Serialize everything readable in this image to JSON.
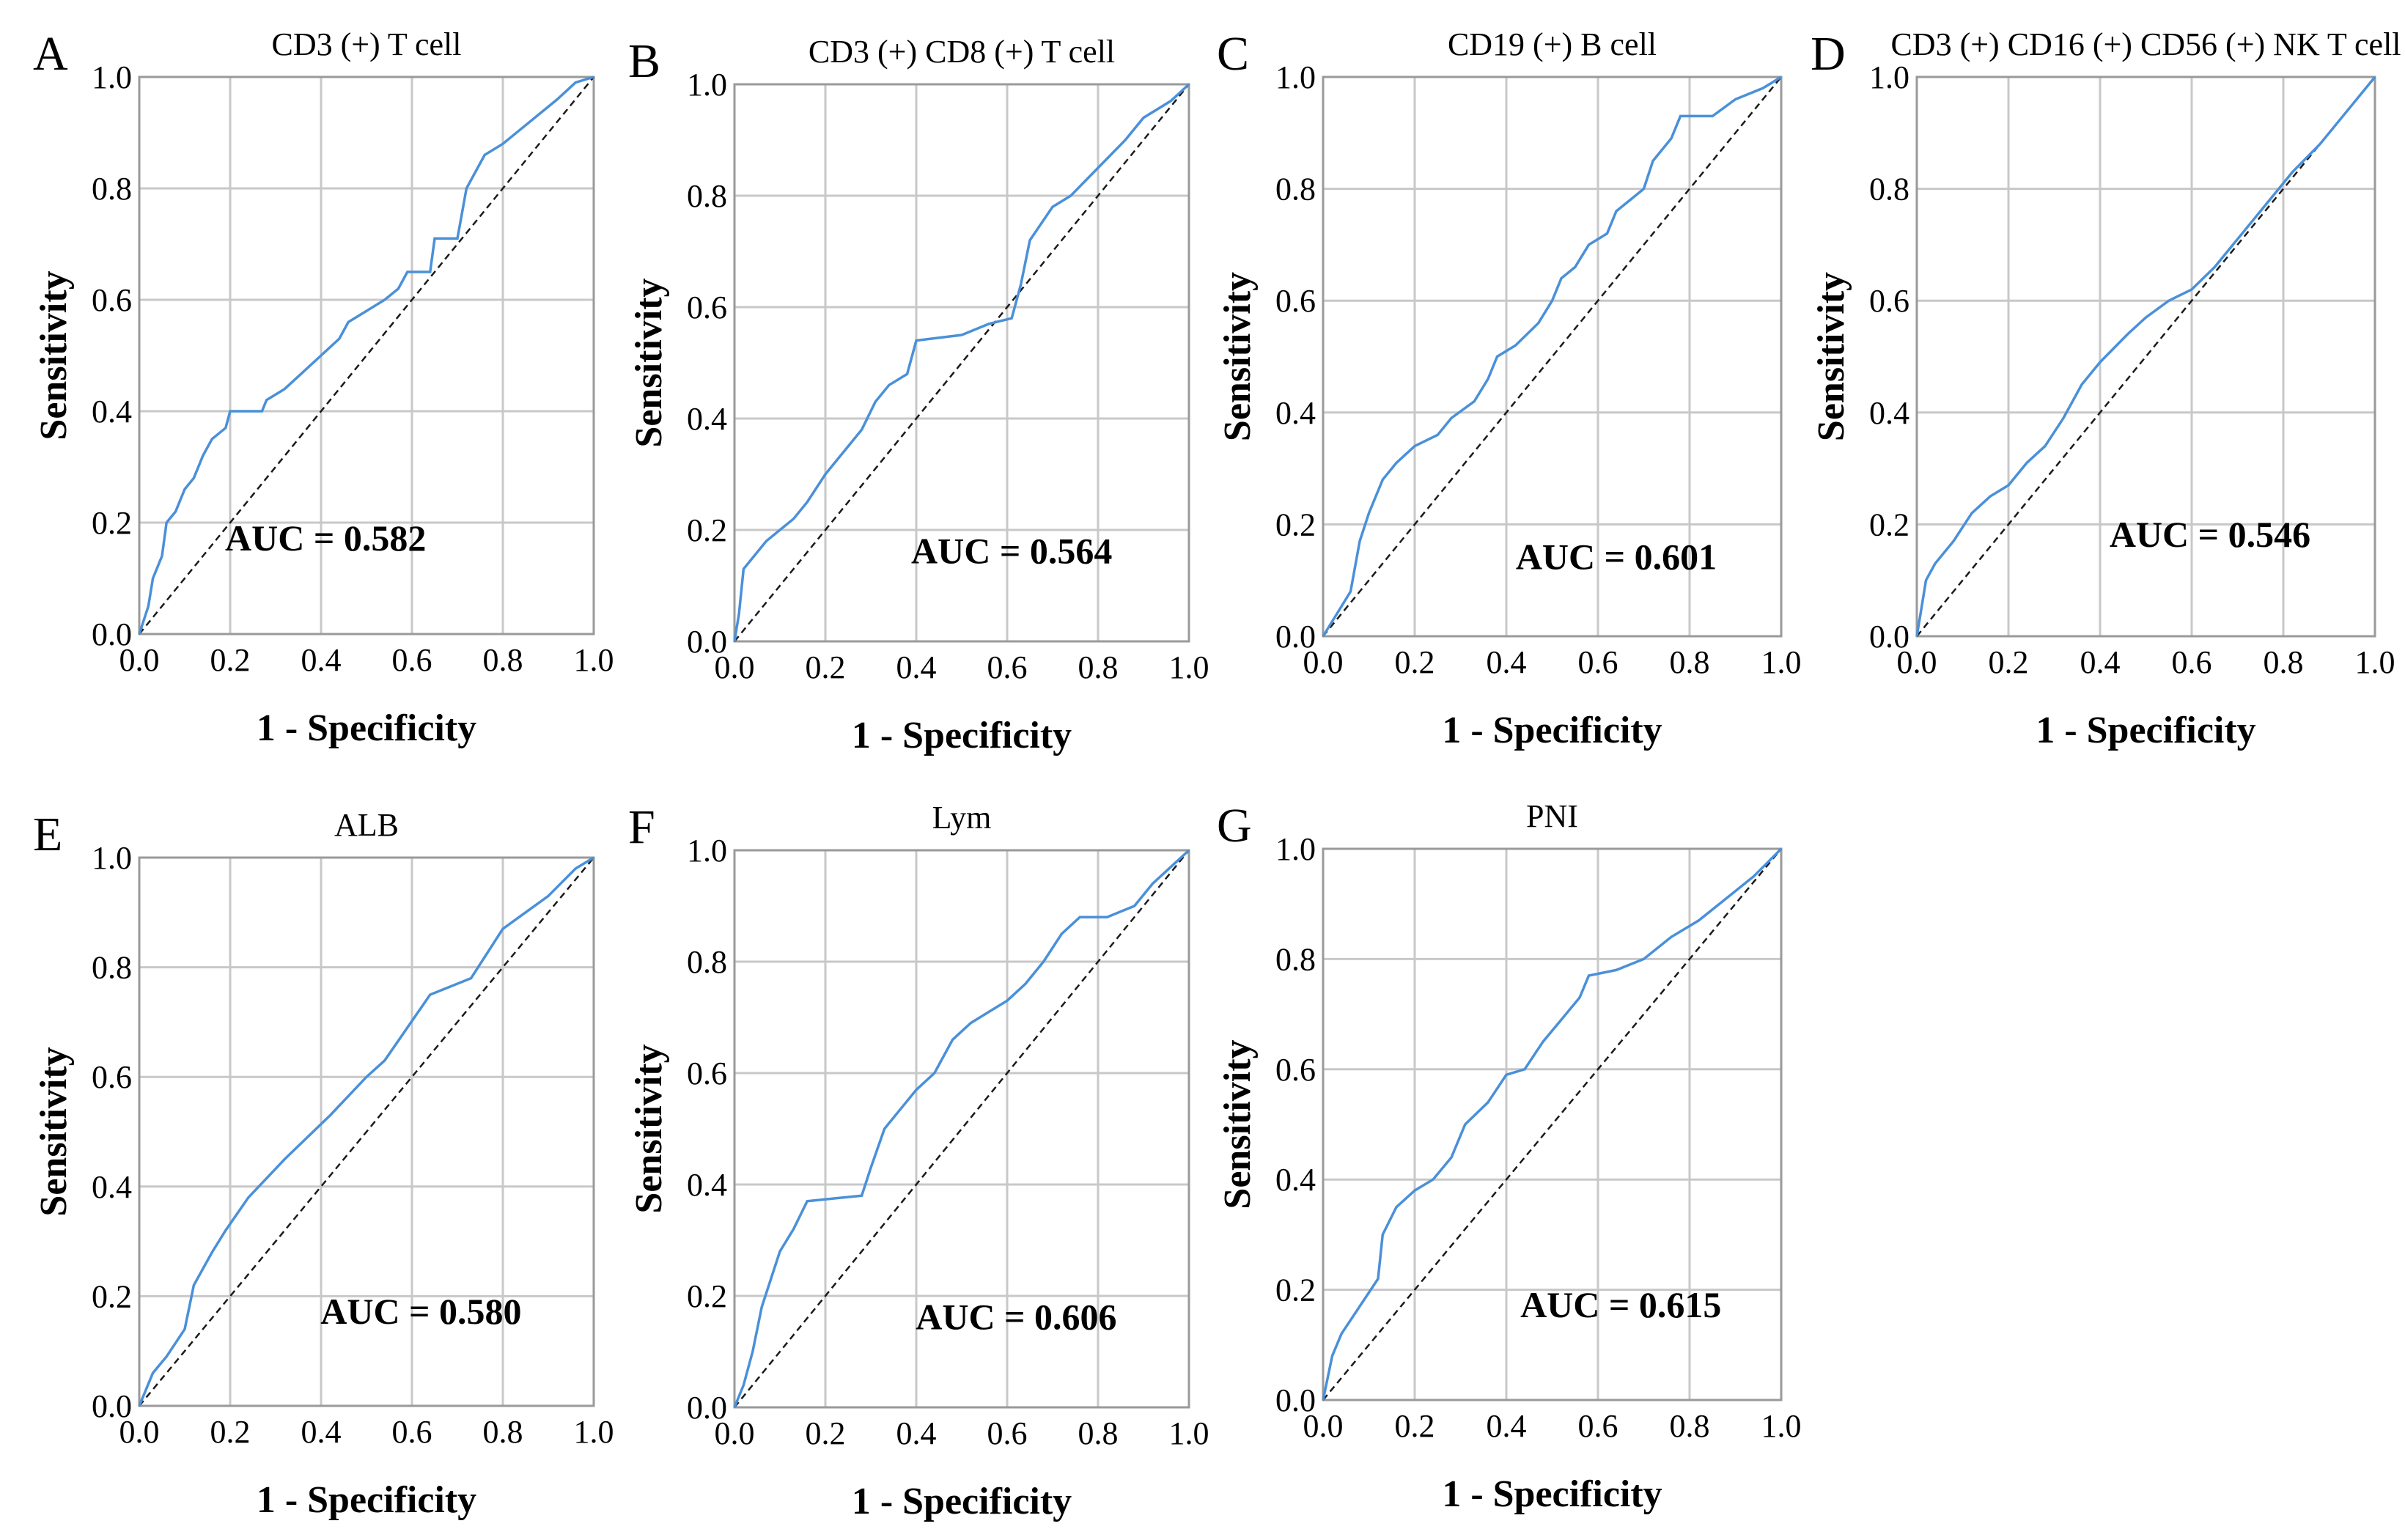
{
  "chart_data": [
    {
      "type": "line",
      "panel": "A",
      "title": "CD3 (+) T cell",
      "xlabel": "1 - Specificity",
      "ylabel": "Sensitivity",
      "xlim": [
        0,
        1
      ],
      "ylim": [
        0,
        1
      ],
      "x_ticks": [
        "0.0",
        "0.2",
        "0.4",
        "0.6",
        "0.8",
        "1.0"
      ],
      "y_ticks": [
        "0.0",
        "0.2",
        "0.4",
        "0.6",
        "0.8",
        "1.0"
      ],
      "grid": true,
      "annotation": "AUC = 0.582",
      "line_color": "#4a90d9",
      "reference_line": [
        [
          0,
          0
        ],
        [
          1,
          1
        ]
      ],
      "roc": [
        [
          0,
          0
        ],
        [
          0.02,
          0.05
        ],
        [
          0.03,
          0.1
        ],
        [
          0.05,
          0.14
        ],
        [
          0.06,
          0.2
        ],
        [
          0.08,
          0.22
        ],
        [
          0.1,
          0.26
        ],
        [
          0.12,
          0.28
        ],
        [
          0.14,
          0.32
        ],
        [
          0.16,
          0.35
        ],
        [
          0.19,
          0.37
        ],
        [
          0.2,
          0.4
        ],
        [
          0.27,
          0.4
        ],
        [
          0.28,
          0.42
        ],
        [
          0.32,
          0.44
        ],
        [
          0.36,
          0.47
        ],
        [
          0.4,
          0.5
        ],
        [
          0.44,
          0.53
        ],
        [
          0.46,
          0.56
        ],
        [
          0.5,
          0.58
        ],
        [
          0.54,
          0.6
        ],
        [
          0.57,
          0.62
        ],
        [
          0.59,
          0.65
        ],
        [
          0.64,
          0.65
        ],
        [
          0.65,
          0.71
        ],
        [
          0.7,
          0.71
        ],
        [
          0.72,
          0.8
        ],
        [
          0.76,
          0.86
        ],
        [
          0.8,
          0.88
        ],
        [
          0.86,
          0.92
        ],
        [
          0.92,
          0.96
        ],
        [
          0.96,
          0.99
        ],
        [
          1,
          1
        ]
      ]
    },
    {
      "type": "line",
      "panel": "B",
      "title": "CD3 (+)  CD8 (+) T cell",
      "xlabel": "1 - Specificity",
      "ylabel": "Sensitivity",
      "xlim": [
        0,
        1
      ],
      "ylim": [
        0,
        1
      ],
      "x_ticks": [
        "0.0",
        "0.2",
        "0.4",
        "0.6",
        "0.8",
        "1.0"
      ],
      "y_ticks": [
        "0.0",
        "0.2",
        "0.4",
        "0.6",
        "0.8",
        "1.0"
      ],
      "grid": true,
      "annotation": "AUC = 0.564",
      "line_color": "#4a90d9",
      "reference_line": [
        [
          0,
          0
        ],
        [
          1,
          1
        ]
      ],
      "roc": [
        [
          0,
          0
        ],
        [
          0.01,
          0.05
        ],
        [
          0.02,
          0.13
        ],
        [
          0.04,
          0.15
        ],
        [
          0.07,
          0.18
        ],
        [
          0.1,
          0.2
        ],
        [
          0.13,
          0.22
        ],
        [
          0.16,
          0.25
        ],
        [
          0.2,
          0.3
        ],
        [
          0.24,
          0.34
        ],
        [
          0.28,
          0.38
        ],
        [
          0.31,
          0.43
        ],
        [
          0.34,
          0.46
        ],
        [
          0.38,
          0.48
        ],
        [
          0.4,
          0.54
        ],
        [
          0.5,
          0.55
        ],
        [
          0.56,
          0.57
        ],
        [
          0.61,
          0.58
        ],
        [
          0.63,
          0.64
        ],
        [
          0.65,
          0.72
        ],
        [
          0.7,
          0.78
        ],
        [
          0.74,
          0.8
        ],
        [
          0.8,
          0.85
        ],
        [
          0.86,
          0.9
        ],
        [
          0.9,
          0.94
        ],
        [
          0.96,
          0.97
        ],
        [
          1,
          1
        ]
      ]
    },
    {
      "type": "line",
      "panel": "C",
      "title": "CD19 (+) B cell",
      "xlabel": "1 - Specificity",
      "ylabel": "Sensitivity",
      "xlim": [
        0,
        1
      ],
      "ylim": [
        0,
        1
      ],
      "x_ticks": [
        "0.0",
        "0.2",
        "0.4",
        "0.6",
        "0.8",
        "1.0"
      ],
      "y_ticks": [
        "0.0",
        "0.2",
        "0.4",
        "0.6",
        "0.8",
        "1.0"
      ],
      "grid": true,
      "annotation": "AUC = 0.601",
      "line_color": "#4a90d9",
      "reference_line": [
        [
          0,
          0
        ],
        [
          1,
          1
        ]
      ],
      "roc": [
        [
          0,
          0
        ],
        [
          0.03,
          0.04
        ],
        [
          0.06,
          0.08
        ],
        [
          0.08,
          0.17
        ],
        [
          0.1,
          0.22
        ],
        [
          0.13,
          0.28
        ],
        [
          0.16,
          0.31
        ],
        [
          0.2,
          0.34
        ],
        [
          0.25,
          0.36
        ],
        [
          0.28,
          0.39
        ],
        [
          0.33,
          0.42
        ],
        [
          0.36,
          0.46
        ],
        [
          0.38,
          0.5
        ],
        [
          0.42,
          0.52
        ],
        [
          0.47,
          0.56
        ],
        [
          0.5,
          0.6
        ],
        [
          0.52,
          0.64
        ],
        [
          0.55,
          0.66
        ],
        [
          0.58,
          0.7
        ],
        [
          0.62,
          0.72
        ],
        [
          0.64,
          0.76
        ],
        [
          0.67,
          0.78
        ],
        [
          0.7,
          0.8
        ],
        [
          0.72,
          0.85
        ],
        [
          0.76,
          0.89
        ],
        [
          0.78,
          0.93
        ],
        [
          0.85,
          0.93
        ],
        [
          0.9,
          0.96
        ],
        [
          0.96,
          0.98
        ],
        [
          1,
          1
        ]
      ]
    },
    {
      "type": "line",
      "panel": "D",
      "title": "CD3 (+) CD16 (+) CD56 (+) NK T cell",
      "xlabel": "1 - Specificity",
      "ylabel": "Sensitivity",
      "xlim": [
        0,
        1
      ],
      "ylim": [
        0,
        1
      ],
      "x_ticks": [
        "0.0",
        "0.2",
        "0.4",
        "0.6",
        "0.8",
        "1.0"
      ],
      "y_ticks": [
        "0.0",
        "0.2",
        "0.4",
        "0.6",
        "0.8",
        "1.0"
      ],
      "grid": true,
      "annotation": "AUC = 0.546",
      "line_color": "#4a90d9",
      "reference_line": [
        [
          0,
          0
        ],
        [
          1,
          1
        ]
      ],
      "roc": [
        [
          0,
          0
        ],
        [
          0.01,
          0.05
        ],
        [
          0.02,
          0.1
        ],
        [
          0.04,
          0.13
        ],
        [
          0.08,
          0.17
        ],
        [
          0.12,
          0.22
        ],
        [
          0.16,
          0.25
        ],
        [
          0.2,
          0.27
        ],
        [
          0.24,
          0.31
        ],
        [
          0.28,
          0.34
        ],
        [
          0.32,
          0.39
        ],
        [
          0.36,
          0.45
        ],
        [
          0.4,
          0.49
        ],
        [
          0.46,
          0.54
        ],
        [
          0.5,
          0.57
        ],
        [
          0.55,
          0.6
        ],
        [
          0.6,
          0.62
        ],
        [
          0.65,
          0.66
        ],
        [
          0.7,
          0.71
        ],
        [
          0.76,
          0.77
        ],
        [
          0.82,
          0.83
        ],
        [
          0.88,
          0.88
        ],
        [
          0.94,
          0.94
        ],
        [
          1,
          1
        ]
      ]
    },
    {
      "type": "line",
      "panel": "E",
      "title": "ALB",
      "xlabel": "1 - Specificity",
      "ylabel": "Sensitivity",
      "xlim": [
        0,
        1
      ],
      "ylim": [
        0,
        1
      ],
      "x_ticks": [
        "0.0",
        "0.2",
        "0.4",
        "0.6",
        "0.8",
        "1.0"
      ],
      "y_ticks": [
        "0.0",
        "0.2",
        "0.4",
        "0.6",
        "0.8",
        "1.0"
      ],
      "grid": true,
      "annotation": "AUC = 0.580",
      "line_color": "#4a90d9",
      "reference_line": [
        [
          0,
          0
        ],
        [
          1,
          1
        ]
      ],
      "roc": [
        [
          0,
          0
        ],
        [
          0.03,
          0.06
        ],
        [
          0.06,
          0.09
        ],
        [
          0.1,
          0.14
        ],
        [
          0.12,
          0.22
        ],
        [
          0.16,
          0.28
        ],
        [
          0.19,
          0.32
        ],
        [
          0.24,
          0.38
        ],
        [
          0.32,
          0.45
        ],
        [
          0.42,
          0.53
        ],
        [
          0.5,
          0.6
        ],
        [
          0.54,
          0.63
        ],
        [
          0.64,
          0.75
        ],
        [
          0.73,
          0.78
        ],
        [
          0.8,
          0.87
        ],
        [
          0.85,
          0.9
        ],
        [
          0.9,
          0.93
        ],
        [
          0.96,
          0.98
        ],
        [
          1,
          1
        ]
      ]
    },
    {
      "type": "line",
      "panel": "F",
      "title": "Lym",
      "xlabel": "1 - Specificity",
      "ylabel": "Sensitivity",
      "xlim": [
        0,
        1
      ],
      "ylim": [
        0,
        1
      ],
      "x_ticks": [
        "0.0",
        "0.2",
        "0.4",
        "0.6",
        "0.8",
        "1.0"
      ],
      "y_ticks": [
        "0.0",
        "0.2",
        "0.4",
        "0.6",
        "0.8",
        "1.0"
      ],
      "grid": true,
      "annotation": "AUC = 0.606",
      "line_color": "#4a90d9",
      "reference_line": [
        [
          0,
          0
        ],
        [
          1,
          1
        ]
      ],
      "roc": [
        [
          0,
          0
        ],
        [
          0.02,
          0.04
        ],
        [
          0.04,
          0.1
        ],
        [
          0.06,
          0.18
        ],
        [
          0.08,
          0.23
        ],
        [
          0.1,
          0.28
        ],
        [
          0.13,
          0.32
        ],
        [
          0.16,
          0.37
        ],
        [
          0.28,
          0.38
        ],
        [
          0.3,
          0.43
        ],
        [
          0.33,
          0.5
        ],
        [
          0.36,
          0.53
        ],
        [
          0.4,
          0.57
        ],
        [
          0.44,
          0.6
        ],
        [
          0.48,
          0.66
        ],
        [
          0.52,
          0.69
        ],
        [
          0.56,
          0.71
        ],
        [
          0.6,
          0.73
        ],
        [
          0.64,
          0.76
        ],
        [
          0.68,
          0.8
        ],
        [
          0.72,
          0.85
        ],
        [
          0.76,
          0.88
        ],
        [
          0.82,
          0.88
        ],
        [
          0.88,
          0.9
        ],
        [
          0.92,
          0.94
        ],
        [
          0.96,
          0.97
        ],
        [
          1,
          1
        ]
      ]
    },
    {
      "type": "line",
      "panel": "G",
      "title": "PNI",
      "xlabel": "1 - Specificity",
      "ylabel": "Sensitivity",
      "xlim": [
        0,
        1
      ],
      "ylim": [
        0,
        1
      ],
      "x_ticks": [
        "0.0",
        "0.2",
        "0.4",
        "0.6",
        "0.8",
        "1.0"
      ],
      "y_ticks": [
        "0.0",
        "0.2",
        "0.4",
        "0.6",
        "0.8",
        "1.0"
      ],
      "grid": true,
      "annotation": "AUC = 0.615",
      "line_color": "#4a90d9",
      "reference_line": [
        [
          0,
          0
        ],
        [
          1,
          1
        ]
      ],
      "roc": [
        [
          0,
          0
        ],
        [
          0.02,
          0.08
        ],
        [
          0.04,
          0.12
        ],
        [
          0.08,
          0.17
        ],
        [
          0.12,
          0.22
        ],
        [
          0.13,
          0.3
        ],
        [
          0.16,
          0.35
        ],
        [
          0.2,
          0.38
        ],
        [
          0.24,
          0.4
        ],
        [
          0.28,
          0.44
        ],
        [
          0.31,
          0.5
        ],
        [
          0.36,
          0.54
        ],
        [
          0.4,
          0.59
        ],
        [
          0.44,
          0.6
        ],
        [
          0.48,
          0.65
        ],
        [
          0.52,
          0.69
        ],
        [
          0.56,
          0.73
        ],
        [
          0.58,
          0.77
        ],
        [
          0.64,
          0.78
        ],
        [
          0.7,
          0.8
        ],
        [
          0.76,
          0.84
        ],
        [
          0.82,
          0.87
        ],
        [
          0.88,
          0.91
        ],
        [
          0.94,
          0.95
        ],
        [
          1,
          1
        ]
      ]
    }
  ]
}
